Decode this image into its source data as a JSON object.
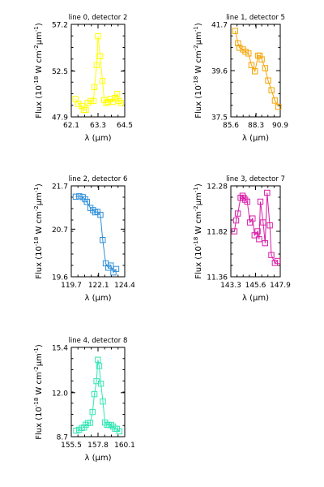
{
  "chart_data": [
    {
      "type": "line",
      "title": "line 0, detector 2",
      "xlabel": "λ (μm)",
      "ylabel": "Flux (10⁻¹⁸ W cm⁻²μm⁻¹)",
      "xlim": [
        62.1,
        64.5
      ],
      "ylim": [
        47.9,
        57.2
      ],
      "xticks": [
        "62.1",
        "63.3",
        "64.5"
      ],
      "yticks": [
        "47.9",
        "52.5",
        "57.2"
      ],
      "color": "#ffff00",
      "series": [
        {
          "x": [
            62.29,
            62.42,
            62.57,
            62.66,
            62.75,
            62.84,
            62.97,
            63.1,
            63.14,
            63.24,
            63.3,
            63.4,
            63.5,
            63.58,
            63.67,
            63.76,
            63.86,
            63.96,
            64.06,
            64.16,
            64.25,
            64.33
          ],
          "y": [
            49.7,
            49.2,
            49.0,
            48.6,
            48.6,
            49.3,
            49.5,
            49.5,
            50.9,
            53.1,
            56.0,
            54.0,
            51.5,
            49.6,
            49.3,
            49.4,
            49.7,
            49.4,
            49.8,
            50.2,
            49.5,
            49.3
          ]
        }
      ]
    },
    {
      "type": "line",
      "title": "line 1, detector 5",
      "xlabel": "λ (μm)",
      "ylabel": "Flux (10⁻¹⁸ W cm⁻²μm⁻¹)",
      "xlim": [
        85.6,
        90.9
      ],
      "ylim": [
        37.5,
        41.7
      ],
      "xticks": [
        "85.6",
        "88.3",
        "90.9"
      ],
      "yticks": [
        "37.5",
        "39.6",
        "41.7"
      ],
      "color": "#f5a300",
      "series": [
        {
          "x": [
            86.06,
            86.37,
            86.53,
            86.9,
            87.17,
            87.49,
            87.81,
            88.18,
            88.54,
            88.7,
            88.91,
            89.28,
            89.6,
            89.96,
            90.33,
            90.7
          ],
          "y": [
            41.4,
            40.84,
            40.64,
            40.56,
            40.46,
            40.38,
            39.85,
            39.57,
            40.28,
            40.28,
            40.11,
            39.71,
            39.15,
            38.71,
            38.24,
            37.96
          ]
        }
      ]
    },
    {
      "type": "line",
      "title": "line 2, detector 6",
      "xlabel": "λ (μm)",
      "ylabel": "Flux (10⁻¹⁸ W cm⁻²μm⁻¹)",
      "xlim": [
        119.7,
        124.4
      ],
      "ylim": [
        19.6,
        21.7
      ],
      "xticks": [
        "119.7",
        "122.1",
        "124.4"
      ],
      "yticks": [
        "19.6",
        "20.7",
        "21.7"
      ],
      "color": "#2f8fd8",
      "series": [
        {
          "x": [
            120.09,
            120.4,
            120.71,
            120.92,
            121.07,
            121.38,
            121.61,
            121.8,
            122.0,
            122.26,
            122.46,
            122.73,
            122.96,
            123.17,
            123.4,
            123.65
          ],
          "y": [
            21.45,
            21.46,
            21.44,
            21.39,
            21.33,
            21.19,
            21.14,
            21.09,
            21.1,
            21.03,
            20.45,
            19.91,
            19.81,
            19.86,
            19.7,
            19.78
          ]
        }
      ]
    },
    {
      "type": "line",
      "title": "line 3, detector 7",
      "xlabel": "λ (μm)",
      "ylabel": "Flux (10⁻¹⁸ W cm⁻²μm⁻¹)",
      "xlim": [
        143.3,
        147.9
      ],
      "ylim": [
        11.36,
        12.28
      ],
      "xticks": [
        "143.3",
        "145.6",
        "147.9"
      ],
      "yticks": [
        "11.36",
        "11.82",
        "12.28"
      ],
      "color": "#d81fa8",
      "series": [
        {
          "x": [
            143.63,
            143.79,
            143.95,
            144.21,
            144.39,
            144.49,
            144.63,
            144.83,
            145.08,
            145.32,
            145.51,
            145.79,
            145.93,
            146.05,
            146.31,
            146.49,
            146.68,
            146.93,
            147.07,
            147.4,
            147.63
          ],
          "y": [
            11.82,
            11.93,
            12.0,
            12.16,
            12.18,
            12.16,
            12.14,
            12.12,
            11.91,
            11.95,
            11.78,
            11.82,
            11.74,
            12.12,
            11.91,
            11.7,
            12.21,
            11.88,
            11.58,
            11.5,
            11.52
          ]
        }
      ]
    },
    {
      "type": "line",
      "title": "line 4, detector 8",
      "xlabel": "λ (μm)",
      "ylabel": "Flux (10⁻¹⁸ W cm⁻²μm⁻¹)",
      "xlim": [
        155.5,
        160.1
      ],
      "ylim": [
        8.7,
        15.4
      ],
      "xticks": [
        "155.5",
        "157.8",
        "160.1"
      ],
      "yticks": [
        "8.7",
        "12.0",
        "15.4"
      ],
      "color": "#33e6b4",
      "series": [
        {
          "x": [
            155.92,
            156.17,
            156.41,
            156.6,
            156.75,
            156.93,
            157.13,
            157.33,
            157.49,
            157.67,
            157.79,
            157.9,
            158.05,
            158.22,
            158.4,
            158.58,
            158.73,
            158.93,
            159.09,
            159.26,
            159.43,
            159.64
          ],
          "y": [
            9.15,
            9.22,
            9.35,
            9.39,
            9.59,
            9.72,
            9.74,
            10.55,
            11.89,
            12.87,
            14.47,
            14.0,
            12.68,
            11.34,
            9.76,
            9.6,
            9.58,
            9.58,
            9.46,
            9.3,
            9.29,
            9.1
          ]
        }
      ]
    }
  ]
}
